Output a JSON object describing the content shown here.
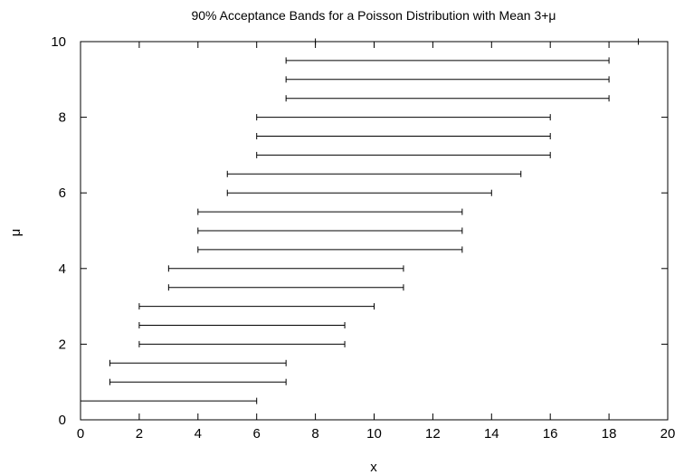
{
  "chart_data": {
    "type": "interval",
    "title": "90% Acceptance Bands for a Poisson Distribution with Mean 3+μ",
    "xlabel": "x",
    "ylabel": "μ",
    "xlim": [
      0,
      20
    ],
    "ylim": [
      0,
      10
    ],
    "x_ticks": [
      0,
      2,
      4,
      6,
      8,
      10,
      12,
      14,
      16,
      18,
      20
    ],
    "y_ticks": [
      0,
      2,
      4,
      6,
      8,
      10
    ],
    "grid": false,
    "legend": "none",
    "series": [
      {
        "intervals": [
          {
            "mu": 0.5,
            "x_low": 0,
            "x_high": 6
          },
          {
            "mu": 1.0,
            "x_low": 1,
            "x_high": 7
          },
          {
            "mu": 1.5,
            "x_low": 1,
            "x_high": 7
          },
          {
            "mu": 2.0,
            "x_low": 2,
            "x_high": 9
          },
          {
            "mu": 2.5,
            "x_low": 2,
            "x_high": 9
          },
          {
            "mu": 3.0,
            "x_low": 2,
            "x_high": 10
          },
          {
            "mu": 3.5,
            "x_low": 3,
            "x_high": 11
          },
          {
            "mu": 4.0,
            "x_low": 3,
            "x_high": 11
          },
          {
            "mu": 4.5,
            "x_low": 4,
            "x_high": 13
          },
          {
            "mu": 5.0,
            "x_low": 4,
            "x_high": 13
          },
          {
            "mu": 5.5,
            "x_low": 4,
            "x_high": 13
          },
          {
            "mu": 6.0,
            "x_low": 5,
            "x_high": 14
          },
          {
            "mu": 6.5,
            "x_low": 5,
            "x_high": 15
          },
          {
            "mu": 7.0,
            "x_low": 6,
            "x_high": 16
          },
          {
            "mu": 7.5,
            "x_low": 6,
            "x_high": 16
          },
          {
            "mu": 8.0,
            "x_low": 6,
            "x_high": 16
          },
          {
            "mu": 8.5,
            "x_low": 7,
            "x_high": 18
          },
          {
            "mu": 9.0,
            "x_low": 7,
            "x_high": 18
          },
          {
            "mu": 9.5,
            "x_low": 7,
            "x_high": 18
          },
          {
            "mu": 10.0,
            "x_low": 8,
            "x_high": 19
          }
        ]
      }
    ],
    "colors": {
      "line": "#000000",
      "background": "#ffffff"
    }
  }
}
